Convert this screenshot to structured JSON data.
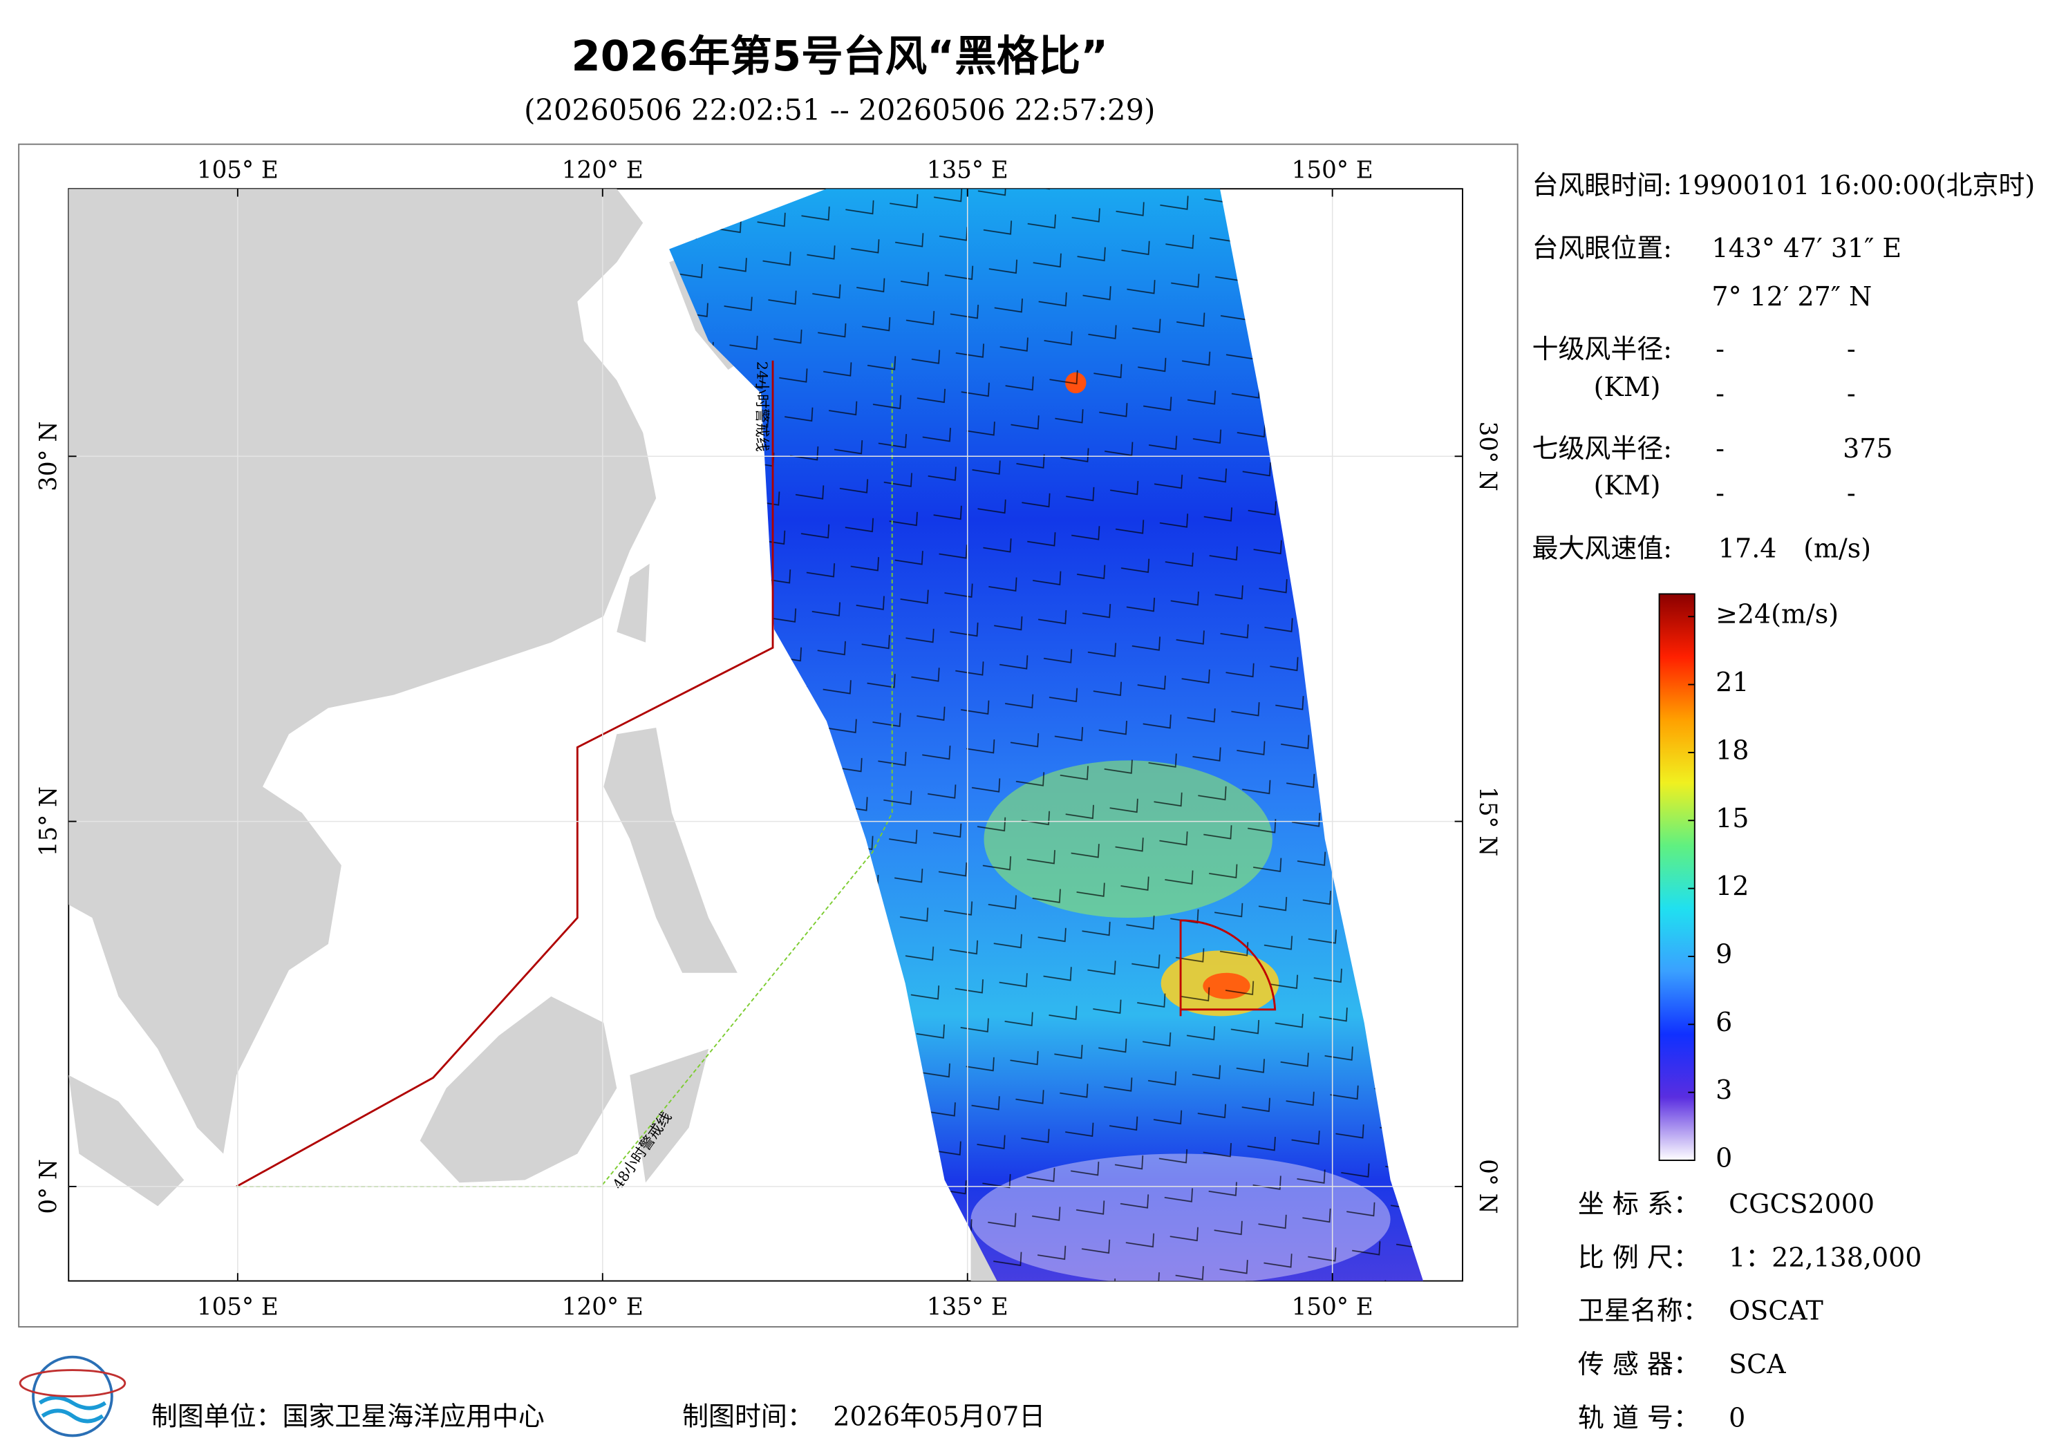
{
  "header": {
    "title": "2026年第5号台风“黑格比”",
    "subtitle": "(20260506 22:02:51 -- 20260506 22:57:29)"
  },
  "map": {
    "lonlim": [
      98.05,
      155.35
    ],
    "latlim": [
      -3.88,
      40.99
    ],
    "lon_ticks": [
      {
        "value": 105,
        "label": "105° E"
      },
      {
        "value": 120,
        "label": "120° E"
      },
      {
        "value": 135,
        "label": "135° E"
      },
      {
        "value": 150,
        "label": "150° E"
      }
    ],
    "lat_ticks": [
      {
        "value": 0,
        "label": "0° N"
      },
      {
        "value": 15,
        "label": "15° N"
      },
      {
        "value": 30,
        "label": "30° N"
      }
    ],
    "annotations": [
      "48小时警戒线",
      "24小时警戒线"
    ]
  },
  "info": {
    "eye_time": {
      "label": "台风眼时间:",
      "value": "19900101 16:00:00(北京时)"
    },
    "eye_position": {
      "label": "台风眼位置:",
      "lon": "143° 47′ 31″ E",
      "lat": "7° 12′ 27″ N"
    },
    "r10": {
      "label": "十级风半径:",
      "unit": "(KM)",
      "values": [
        [
          "-",
          "-"
        ],
        [
          "-",
          "-"
        ]
      ]
    },
    "r7": {
      "label": "七级风半径:",
      "unit": "(KM)",
      "values": [
        [
          "-",
          375
        ],
        [
          "-",
          "-"
        ]
      ]
    },
    "max_wind": {
      "label": "最大风速值:",
      "value": 17.4,
      "unit": "(m/s)"
    }
  },
  "colorbar": {
    "lim": [
      0,
      25
    ],
    "ticks": [
      0,
      3,
      6,
      9,
      12,
      15,
      18,
      21,
      {
        "value": 24,
        "label": "≥24(m/s)"
      }
    ],
    "colors": [
      "#ffffff",
      "#5a2ee0",
      "#1030ff",
      "#3aa0ff",
      "#20e0f0",
      "#60f080",
      "#f0f020",
      "#ffa000",
      "#ff2000",
      "#8b0000"
    ]
  },
  "meta": [
    {
      "label": "坐 标 系：",
      "value": "CGCS2000"
    },
    {
      "label": "比 例 尺：",
      "value": "1：22,138,000"
    },
    {
      "label": "卫星名称：",
      "value": "OSCAT"
    },
    {
      "label": "传 感 器：",
      "value": "SCA"
    },
    {
      "label": "轨 道 号：",
      "value": 0
    }
  ],
  "footer": {
    "unit": "制图单位：国家卫星海洋应用中心",
    "time_label": "制图时间：",
    "time": "2026年05月07日"
  }
}
